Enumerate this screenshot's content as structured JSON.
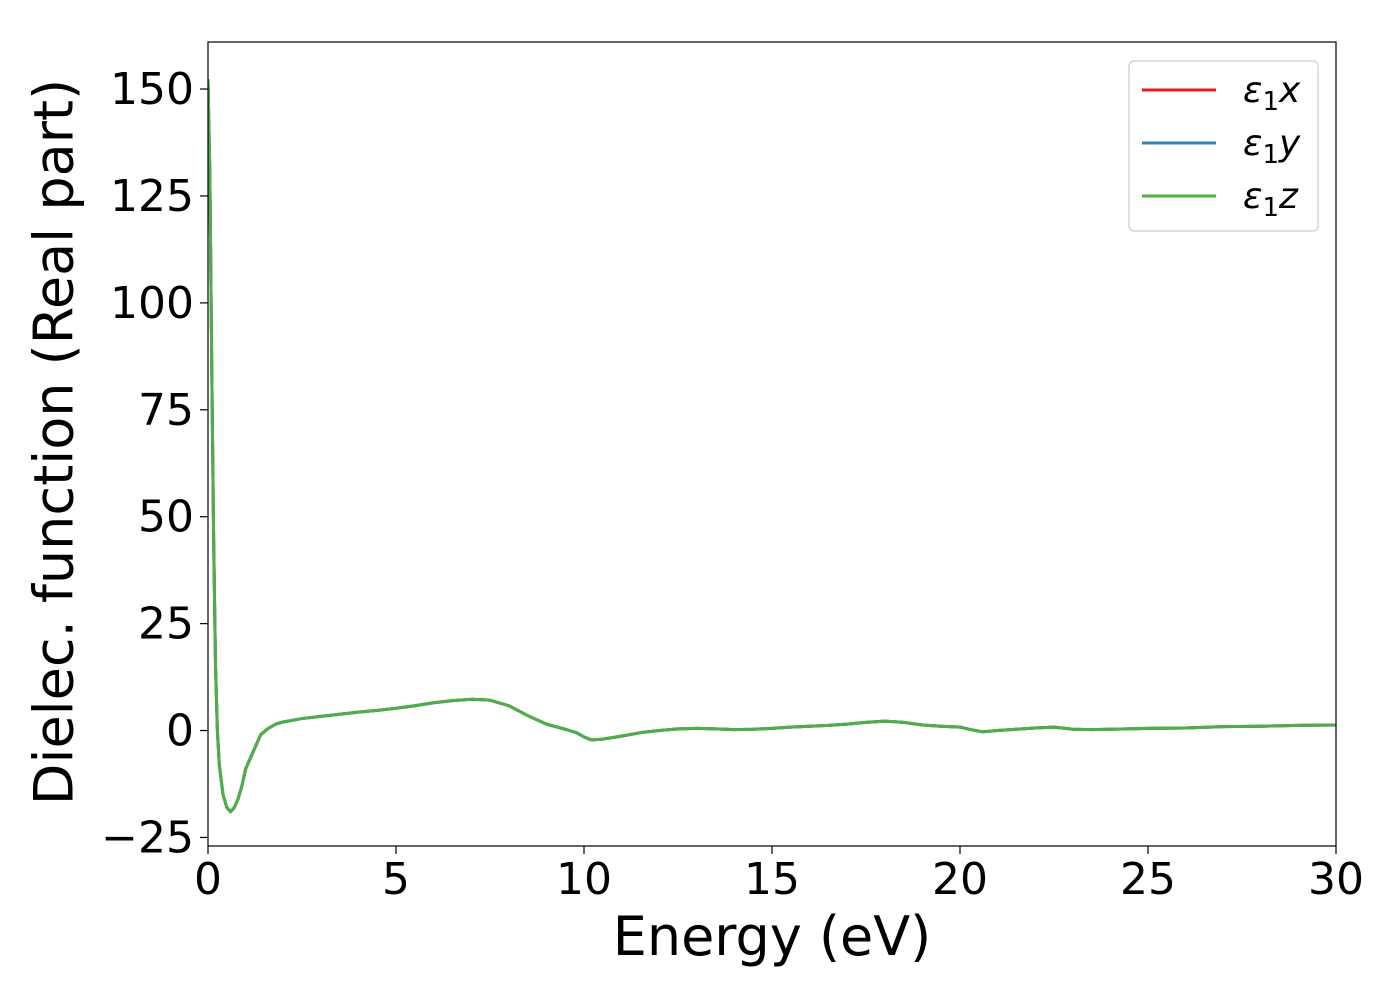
{
  "chart_data": {
    "type": "line",
    "title": "",
    "xlabel": "Energy (eV)",
    "ylabel": "Dielec. function (Real part)",
    "xlim": [
      0,
      30
    ],
    "ylim": [
      -27,
      161
    ],
    "xticks": [
      0,
      5,
      10,
      15,
      20,
      25,
      30
    ],
    "xtick_labels": [
      "0",
      "5",
      "10",
      "15",
      "20",
      "25",
      "30"
    ],
    "yticks": [
      -25,
      0,
      25,
      50,
      75,
      100,
      125,
      150
    ],
    "ytick_labels": [
      "−25",
      "0",
      "25",
      "50",
      "75",
      "100",
      "125",
      "150"
    ],
    "grid": false,
    "legend_position": "top-right",
    "series": [
      {
        "name": "ε₁x",
        "legend_symbol": "ε",
        "legend_subscript": "1",
        "legend_suffix": "x",
        "color": "#e41a1c",
        "x": [
          0.0,
          0.05,
          0.1,
          0.15,
          0.2,
          0.25,
          0.3,
          0.4,
          0.5,
          0.6,
          0.7,
          0.8,
          0.9,
          1.0,
          1.2,
          1.4,
          1.6,
          1.8,
          2.0,
          2.5,
          3.0,
          3.5,
          4.0,
          4.5,
          5.0,
          5.5,
          6.0,
          6.5,
          7.0,
          7.5,
          8.0,
          8.5,
          9.0,
          9.5,
          9.8,
          10.0,
          10.2,
          10.5,
          11.0,
          11.5,
          12.0,
          12.5,
          13.0,
          13.5,
          14.0,
          14.5,
          15.0,
          15.5,
          16.0,
          16.5,
          17.0,
          17.5,
          18.0,
          18.5,
          19.0,
          19.5,
          20.0,
          20.3,
          20.6,
          21.0,
          21.5,
          22.0,
          22.5,
          23.0,
          23.5,
          24.0,
          25.0,
          26.0,
          27.0,
          28.0,
          29.0,
          30.0
        ],
        "y": [
          152,
          130,
          85,
          45,
          15,
          0,
          -8,
          -15,
          -18,
          -19,
          -18,
          -16,
          -13,
          -9,
          -5,
          -1,
          0.5,
          1.5,
          2.0,
          2.8,
          3.3,
          3.8,
          4.3,
          4.7,
          5.2,
          5.8,
          6.5,
          7.0,
          7.3,
          7.1,
          5.8,
          3.5,
          1.5,
          0.3,
          -0.5,
          -1.5,
          -2.2,
          -2.0,
          -1.3,
          -0.5,
          0.0,
          0.4,
          0.5,
          0.4,
          0.2,
          0.3,
          0.5,
          0.8,
          1.0,
          1.2,
          1.5,
          1.9,
          2.2,
          1.9,
          1.3,
          1.0,
          0.8,
          0.2,
          -0.3,
          0.0,
          0.3,
          0.6,
          0.8,
          0.3,
          0.2,
          0.3,
          0.5,
          0.6,
          0.9,
          1.0,
          1.2,
          1.3
        ]
      },
      {
        "name": "ε₁y",
        "legend_symbol": "ε",
        "legend_subscript": "1",
        "legend_suffix": "y",
        "color": "#377eb8",
        "x": [
          0.0,
          0.05,
          0.1,
          0.15,
          0.2,
          0.25,
          0.3,
          0.4,
          0.5,
          0.6,
          0.7,
          0.8,
          0.9,
          1.0,
          1.2,
          1.4,
          1.6,
          1.8,
          2.0,
          2.5,
          3.0,
          3.5,
          4.0,
          4.5,
          5.0,
          5.5,
          6.0,
          6.5,
          7.0,
          7.5,
          8.0,
          8.5,
          9.0,
          9.5,
          9.8,
          10.0,
          10.2,
          10.5,
          11.0,
          11.5,
          12.0,
          12.5,
          13.0,
          13.5,
          14.0,
          14.5,
          15.0,
          15.5,
          16.0,
          16.5,
          17.0,
          17.5,
          18.0,
          18.5,
          19.0,
          19.5,
          20.0,
          20.3,
          20.6,
          21.0,
          21.5,
          22.0,
          22.5,
          23.0,
          23.5,
          24.0,
          25.0,
          26.0,
          27.0,
          28.0,
          29.0,
          30.0
        ],
        "y": [
          152,
          130,
          85,
          45,
          15,
          0,
          -8,
          -15,
          -18,
          -19,
          -18,
          -16,
          -13,
          -9,
          -5,
          -1,
          0.5,
          1.5,
          2.0,
          2.8,
          3.3,
          3.8,
          4.3,
          4.7,
          5.2,
          5.8,
          6.5,
          7.0,
          7.3,
          7.1,
          5.8,
          3.5,
          1.5,
          0.3,
          -0.5,
          -1.5,
          -2.2,
          -2.0,
          -1.3,
          -0.5,
          0.0,
          0.4,
          0.5,
          0.4,
          0.2,
          0.3,
          0.5,
          0.8,
          1.0,
          1.2,
          1.5,
          1.9,
          2.2,
          1.9,
          1.3,
          1.0,
          0.8,
          0.2,
          -0.3,
          0.0,
          0.3,
          0.6,
          0.8,
          0.3,
          0.2,
          0.3,
          0.5,
          0.6,
          0.9,
          1.0,
          1.2,
          1.3
        ]
      },
      {
        "name": "ε₁z",
        "legend_symbol": "ε",
        "legend_subscript": "1",
        "legend_suffix": "z",
        "color": "#4daf4a",
        "x": [
          0.0,
          0.05,
          0.1,
          0.15,
          0.2,
          0.25,
          0.3,
          0.4,
          0.5,
          0.6,
          0.7,
          0.8,
          0.9,
          1.0,
          1.2,
          1.4,
          1.6,
          1.8,
          2.0,
          2.5,
          3.0,
          3.5,
          4.0,
          4.5,
          5.0,
          5.5,
          6.0,
          6.5,
          7.0,
          7.5,
          8.0,
          8.5,
          9.0,
          9.5,
          9.8,
          10.0,
          10.2,
          10.5,
          11.0,
          11.5,
          12.0,
          12.5,
          13.0,
          13.5,
          14.0,
          14.5,
          15.0,
          15.5,
          16.0,
          16.5,
          17.0,
          17.5,
          18.0,
          18.5,
          19.0,
          19.5,
          20.0,
          20.3,
          20.6,
          21.0,
          21.5,
          22.0,
          22.5,
          23.0,
          23.5,
          24.0,
          25.0,
          26.0,
          27.0,
          28.0,
          29.0,
          30.0
        ],
        "y": [
          152,
          130,
          85,
          45,
          15,
          0,
          -8,
          -15,
          -18,
          -19,
          -18,
          -16,
          -13,
          -9,
          -5,
          -1,
          0.5,
          1.5,
          2.0,
          2.8,
          3.3,
          3.8,
          4.3,
          4.7,
          5.2,
          5.8,
          6.5,
          7.0,
          7.3,
          7.1,
          5.8,
          3.5,
          1.5,
          0.3,
          -0.5,
          -1.5,
          -2.2,
          -2.0,
          -1.3,
          -0.5,
          0.0,
          0.4,
          0.5,
          0.4,
          0.2,
          0.3,
          0.5,
          0.8,
          1.0,
          1.2,
          1.5,
          1.9,
          2.2,
          1.9,
          1.3,
          1.0,
          0.8,
          0.2,
          -0.3,
          0.0,
          0.3,
          0.6,
          0.8,
          0.3,
          0.2,
          0.3,
          0.5,
          0.6,
          0.9,
          1.0,
          1.2,
          1.3
        ]
      }
    ]
  }
}
